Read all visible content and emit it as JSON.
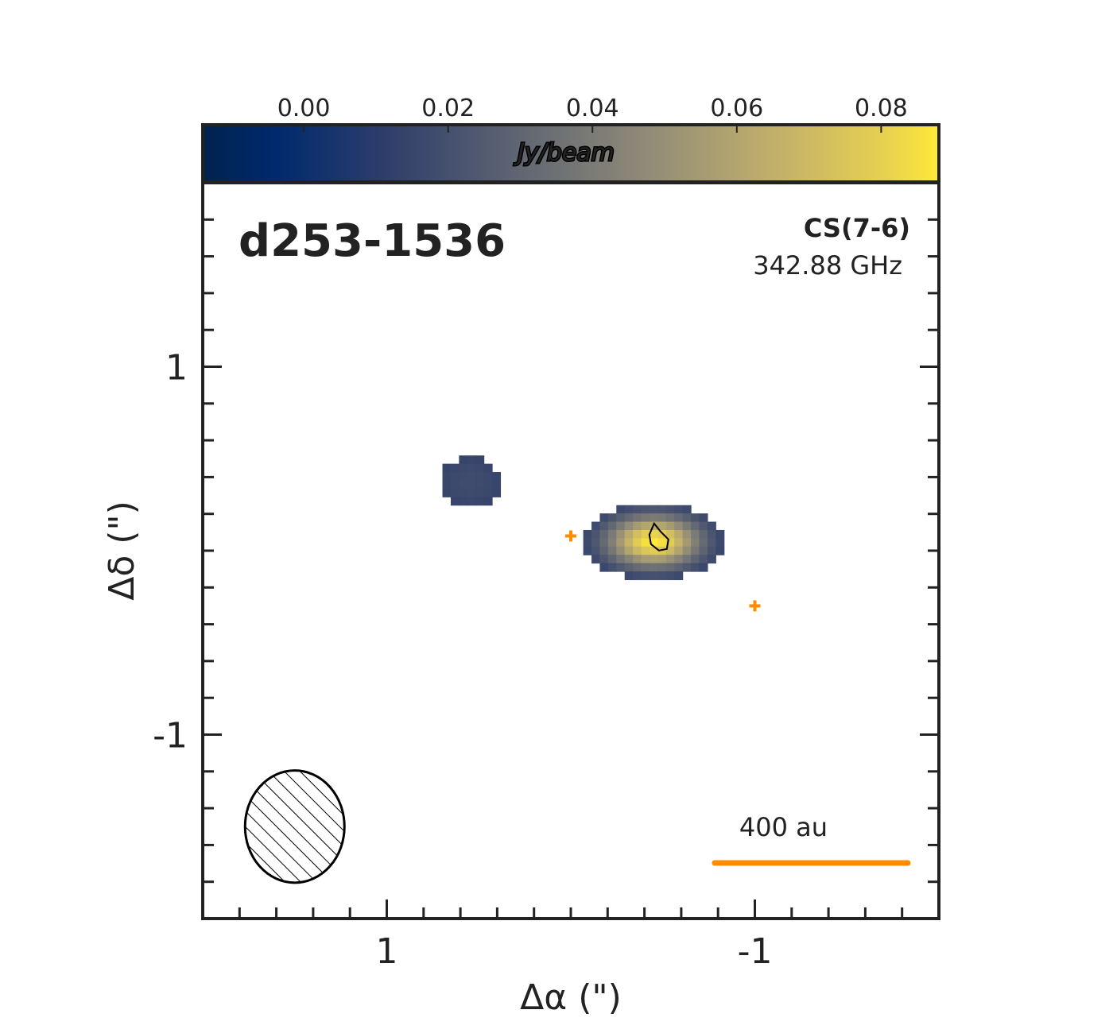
{
  "chart_data": {
    "type": "heatmap",
    "title": "d253-1536",
    "line": {
      "name": "CS(7-6)",
      "frequency": "342.88 GHz"
    },
    "xlabel": "Δα (\")",
    "ylabel": "Δδ (\")",
    "xlim": [
      2.0,
      -2.0
    ],
    "ylim": [
      -2.0,
      2.0
    ],
    "x_ticks": [
      1,
      -1
    ],
    "x_tick_labels": [
      "1",
      "-1"
    ],
    "y_ticks": [
      1,
      -1
    ],
    "y_tick_labels": [
      "1",
      "-1"
    ],
    "colorbar": {
      "label": "Jy/beam",
      "range": [
        -0.014,
        0.088
      ],
      "ticks": [
        0.0,
        0.02,
        0.04,
        0.06,
        0.08
      ],
      "tick_labels": [
        "0.00",
        "0.02",
        "0.04",
        "0.06",
        "0.08"
      ],
      "colormap": "cividis",
      "position": "top"
    },
    "emission": [
      {
        "name": "main",
        "ra_center": -0.45,
        "dec_center": 0.05,
        "ra_halfwidth": 0.38,
        "dec_halfwidth": 0.21,
        "peak": 0.088
      },
      {
        "name": "secondary",
        "ra_center": 0.55,
        "dec_center": 0.37,
        "ra_halfwidth": 0.17,
        "dec_halfwidth": 0.14,
        "peak": 0.018
      }
    ],
    "peak_contour": {
      "ra": -0.47,
      "dec": 0.07
    },
    "markers": [
      {
        "ra": 0.0,
        "dec": 0.08,
        "color": "#ff8c00"
      },
      {
        "ra": -1.0,
        "dec": -0.3,
        "color": "#ff8c00"
      }
    ],
    "beam": {
      "ra_center": 1.5,
      "dec_center": -1.5,
      "major": 0.54,
      "minor": 0.61,
      "hatched": true
    },
    "scalebar": {
      "label": "400 au",
      "length_arcsec": 1.05,
      "color": "#ff8c00",
      "position": "bottom-right"
    },
    "grid": false
  }
}
